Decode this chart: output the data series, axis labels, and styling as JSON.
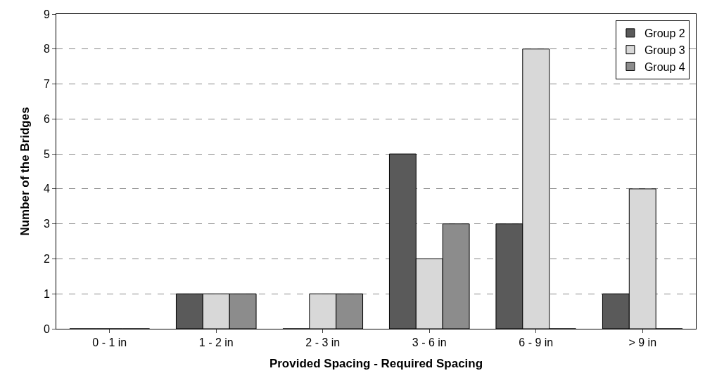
{
  "chart_data": {
    "type": "bar",
    "xlabel": "Provided Spacing - Required Spacing",
    "ylabel": "Number of the Bridges",
    "categories": [
      "0 - 1 in",
      "1 - 2 in",
      "2 - 3 in",
      "3 - 6 in",
      "6 - 9 in",
      "> 9 in"
    ],
    "series": [
      {
        "name": "Group 2",
        "color": "#5a5a5a",
        "values": [
          0,
          1,
          0,
          5,
          3,
          1
        ]
      },
      {
        "name": "Group 3",
        "color": "#d8d8d8",
        "values": [
          0,
          1,
          1,
          2,
          8,
          4
        ]
      },
      {
        "name": "Group 4",
        "color": "#8c8c8c",
        "values": [
          0,
          1,
          1,
          3,
          0,
          0
        ]
      }
    ],
    "ylim": [
      0,
      9
    ],
    "yticks": [
      0,
      1,
      2,
      3,
      4,
      5,
      6,
      7,
      8,
      9
    ],
    "grid": "y",
    "legend": "top right"
  }
}
